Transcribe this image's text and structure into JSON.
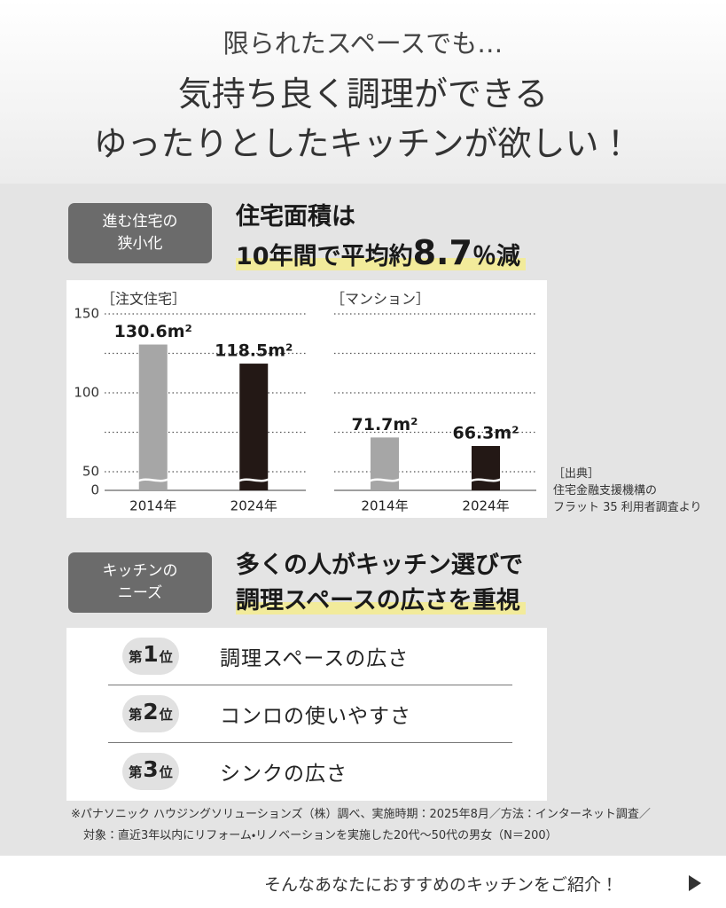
{
  "header": {
    "lead": "限られたスペースでも…",
    "title": [
      "気持ち良く調理ができる",
      "ゆったりとしたキッチンが欲しい！"
    ]
  },
  "section1": {
    "badge": [
      "進む住宅の",
      "狭小化"
    ],
    "headline": [
      "住宅面積は",
      "10年間で平均約",
      "8.7",
      "％減"
    ]
  },
  "chart_data": [
    {
      "type": "bar",
      "title": "［注文住宅］",
      "categories": [
        "2014年",
        "2024年"
      ],
      "values": [
        130.6,
        118.5
      ],
      "value_labels": [
        "130.6m²",
        "118.5m²"
      ],
      "colors": [
        "#a6a6a6",
        "#231815"
      ],
      "ylim": [
        0,
        150
      ],
      "yticks": [
        0,
        50,
        100,
        150
      ],
      "grid_lines": [
        50,
        75,
        100,
        125,
        150
      ],
      "axis_break": [
        0,
        50
      ]
    },
    {
      "type": "bar",
      "title": "［マンション］",
      "categories": [
        "2014年",
        "2024年"
      ],
      "values": [
        71.7,
        66.3
      ],
      "value_labels": [
        "71.7m²",
        "66.3m²"
      ],
      "colors": [
        "#a6a6a6",
        "#231815"
      ],
      "ylim": [
        0,
        150
      ],
      "grid_lines": [
        50,
        75,
        100,
        125,
        150
      ],
      "axis_break": [
        0,
        50
      ]
    }
  ],
  "source": [
    "［出典］",
    "住宅金融支援機構の",
    "フラット 35 利用者調査より"
  ],
  "section2": {
    "badge": [
      "キッチンの",
      "ニーズ"
    ],
    "headline": [
      "多くの人がキッチン選びで",
      "調理スペースの広さを重視"
    ]
  },
  "ranking": [
    {
      "prefix": "第",
      "rank": "1",
      "suffix": "位",
      "label": "調理スペースの広さ"
    },
    {
      "prefix": "第",
      "rank": "2",
      "suffix": "位",
      "label": "コンロの使いやすさ"
    },
    {
      "prefix": "第",
      "rank": "3",
      "suffix": "位",
      "label": "シンクの広さ"
    }
  ],
  "footnote": [
    "※パナソニック ハウジングソリューションズ（株）調べ、実施時期：2025年8月／方法：インターネット調査／",
    "対象：直近3年以内にリフォーム・リノベーションを実施した20代〜50代の男女（N＝200）"
  ],
  "footer": "そんなあなたにおすすめのキッチンをご紹介！"
}
